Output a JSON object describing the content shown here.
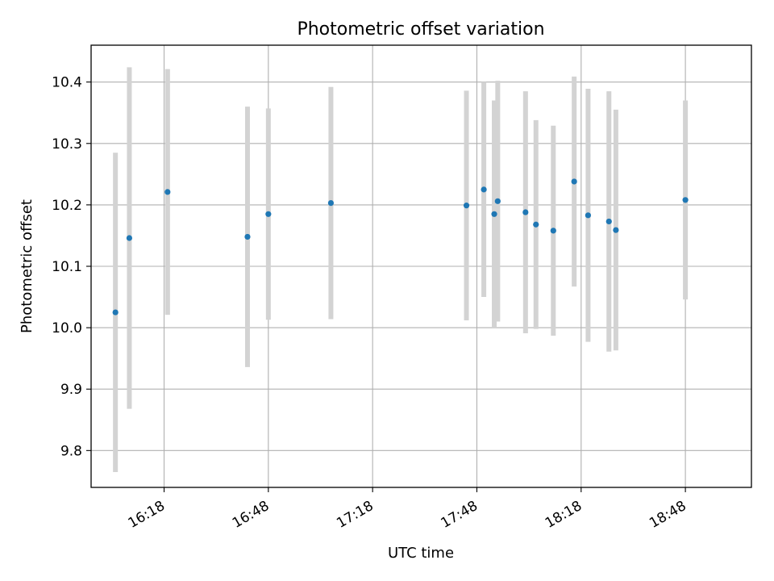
{
  "chart_data": {
    "type": "scatter",
    "title": "Photometric offset variation",
    "xlabel": "UTC time",
    "ylabel": "Photometric offset",
    "x_ticks": [
      "16:18",
      "16:48",
      "17:18",
      "17:48",
      "18:18",
      "18:48"
    ],
    "y_ticks": [
      "9.8",
      "9.9",
      "10.0",
      "10.1",
      "10.2",
      "10.3",
      "10.4"
    ],
    "xlim": [
      "15:57",
      "19:07"
    ],
    "ylim": [
      9.74,
      10.46
    ],
    "grid": true,
    "colors": {
      "point": "#1f77b4",
      "errorbar": "#d3d3d3",
      "grid": "#b0b0b0"
    },
    "points": [
      {
        "x": "16:04",
        "y": 10.025,
        "yerr": 0.26
      },
      {
        "x": "16:08",
        "y": 10.146,
        "yerr": 0.278
      },
      {
        "x": "16:19",
        "y": 10.221,
        "yerr": 0.2
      },
      {
        "x": "16:42",
        "y": 10.148,
        "yerr": 0.212
      },
      {
        "x": "16:48",
        "y": 10.185,
        "yerr": 0.172
      },
      {
        "x": "17:06",
        "y": 10.203,
        "yerr": 0.189
      },
      {
        "x": "17:45",
        "y": 10.199,
        "yerr": 0.187
      },
      {
        "x": "17:50",
        "y": 10.225,
        "yerr": 0.175
      },
      {
        "x": "17:53",
        "y": 10.185,
        "yerr": 0.185
      },
      {
        "x": "17:54",
        "y": 10.206,
        "yerr": 0.196
      },
      {
        "x": "18:02",
        "y": 10.188,
        "yerr": 0.197
      },
      {
        "x": "18:05",
        "y": 10.168,
        "yerr": 0.17
      },
      {
        "x": "18:10",
        "y": 10.158,
        "yerr": 0.171
      },
      {
        "x": "18:16",
        "y": 10.238,
        "yerr": 0.171
      },
      {
        "x": "18:20",
        "y": 10.183,
        "yerr": 0.206
      },
      {
        "x": "18:26",
        "y": 10.173,
        "yerr": 0.212
      },
      {
        "x": "18:28",
        "y": 10.159,
        "yerr": 0.196
      },
      {
        "x": "18:48",
        "y": 10.208,
        "yerr": 0.162
      }
    ]
  }
}
